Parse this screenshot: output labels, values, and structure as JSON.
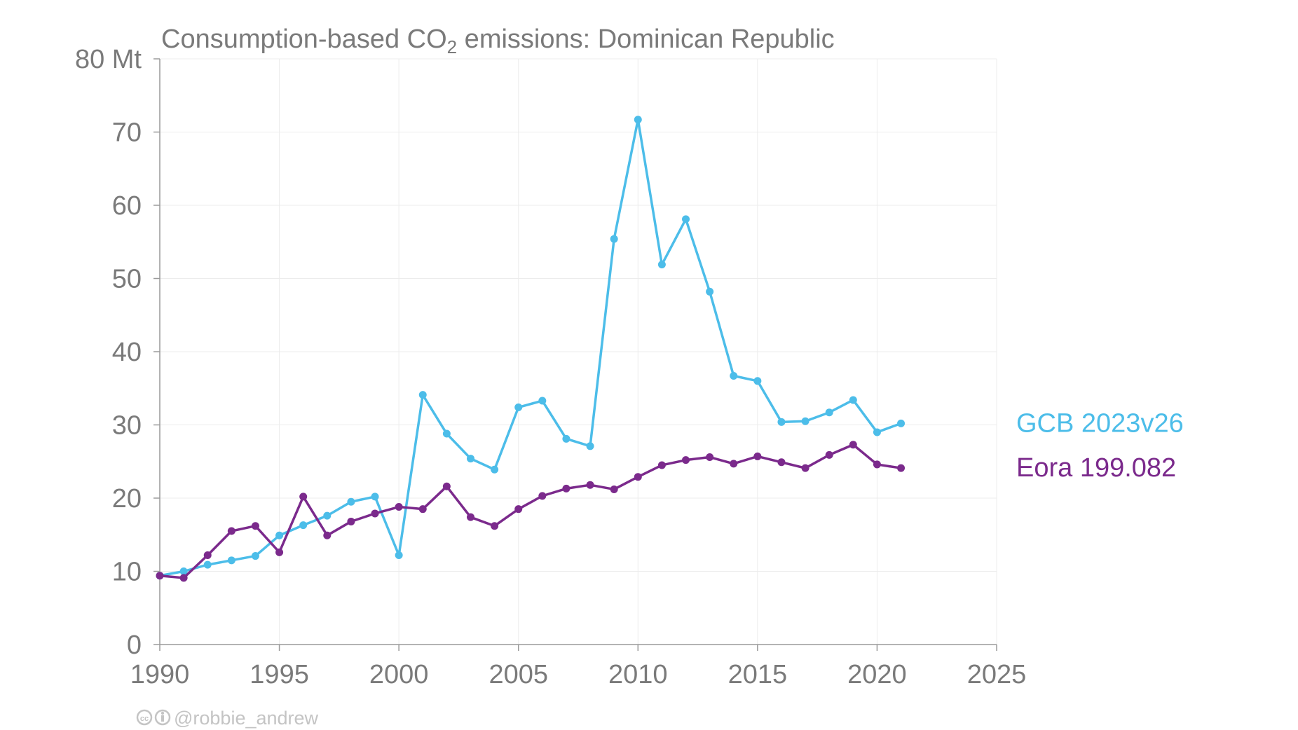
{
  "chart_data": {
    "type": "line",
    "title": {
      "pre": "Consumption-based CO",
      "sub": "2",
      "post": " emissions: Dominican Republic"
    },
    "xlabel": "",
    "ylabel": "",
    "y_unit_label": "80 Mt",
    "xlim": [
      1990,
      2025
    ],
    "ylim": [
      0,
      80
    ],
    "x_ticks": [
      "1990",
      "1995",
      "2000",
      "2005",
      "2010",
      "2015",
      "2020",
      "2025"
    ],
    "y_ticks": [
      "0",
      "10",
      "20",
      "30",
      "40",
      "50",
      "60",
      "70",
      "80 Mt"
    ],
    "grid": true,
    "legend_placement": "right, at line ends",
    "x": [
      1990,
      1991,
      1992,
      1993,
      1994,
      1995,
      1996,
      1997,
      1998,
      1999,
      2000,
      2001,
      2002,
      2003,
      2004,
      2005,
      2006,
      2007,
      2008,
      2009,
      2010,
      2011,
      2012,
      2013,
      2014,
      2015,
      2016,
      2017,
      2018,
      2019,
      2020,
      2021
    ],
    "series": [
      {
        "name": "GCB 2023v26",
        "color": "#4cbde9",
        "values": [
          9.4,
          10.0,
          10.9,
          11.5,
          12.1,
          14.9,
          16.3,
          17.6,
          19.5,
          20.2,
          12.2,
          34.1,
          28.8,
          25.4,
          23.9,
          32.4,
          33.3,
          28.1,
          27.1,
          55.4,
          71.7,
          51.9,
          58.1,
          48.2,
          36.7,
          36.0,
          30.4,
          30.5,
          31.7,
          33.4,
          29.0,
          30.2
        ]
      },
      {
        "name": "Eora 199.082",
        "color": "#7b2a8c",
        "values": [
          9.4,
          9.1,
          12.2,
          15.5,
          16.2,
          12.6,
          20.2,
          14.9,
          16.8,
          17.9,
          18.8,
          18.5,
          21.6,
          17.4,
          16.2,
          18.5,
          20.3,
          21.3,
          21.8,
          21.2,
          22.9,
          24.5,
          25.2,
          25.6,
          24.7,
          25.7,
          24.9,
          24.1,
          25.9,
          27.3,
          24.6,
          24.1
        ]
      }
    ]
  },
  "credit": {
    "icons": "cc-by-icons",
    "text": "@robbie_andrew"
  }
}
